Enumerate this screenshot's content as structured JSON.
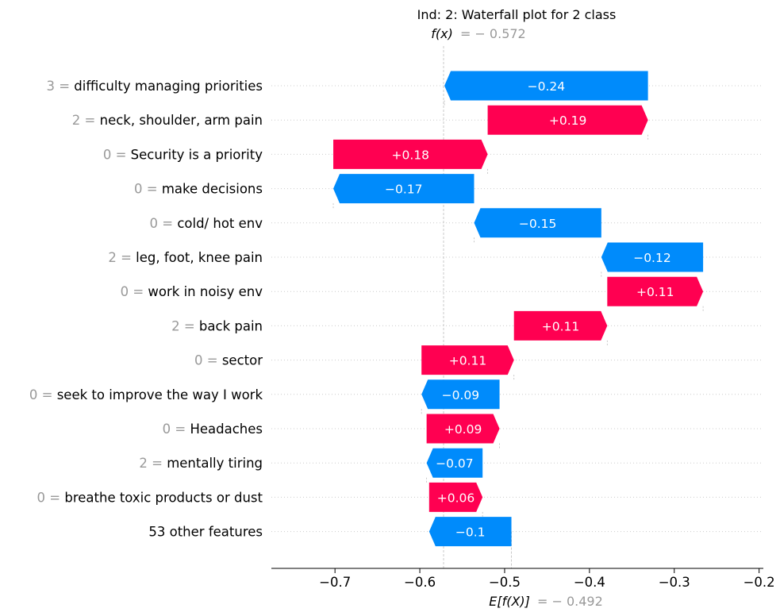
{
  "chart_data": {
    "type": "waterfall",
    "title": "Ind: 2: Waterfall plot for 2 class",
    "fx_label": "f(x)",
    "fx_value_text": "= − 0.572",
    "fx_value": -0.572,
    "base_label": "E[f(X)]",
    "base_value_text": "= − 0.492",
    "base_value": -0.492,
    "xlim": [
      -0.775,
      -0.195
    ],
    "xticks": [
      -0.7,
      -0.6,
      -0.5,
      -0.4,
      -0.3,
      -0.2
    ],
    "xtick_labels": [
      "−0.7",
      "−0.6",
      "−0.5",
      "−0.4",
      "−0.3",
      "−0.2"
    ],
    "grid": "horizontal dotted per row",
    "colors": {
      "positive": "#ff0051",
      "negative": "#008bfb",
      "feature_value": "#999999",
      "text": "#000000"
    },
    "features": [
      {
        "value": "3",
        "name": "difficulty managing priorities",
        "contribution": -0.24,
        "label": "−0.24"
      },
      {
        "value": "2",
        "name": "neck, shoulder, arm pain",
        "contribution": 0.19,
        "label": "+0.19"
      },
      {
        "value": "0",
        "name": "Security is a priority",
        "contribution": 0.18,
        "label": "+0.18"
      },
      {
        "value": "0",
        "name": "make decisions",
        "contribution": -0.17,
        "label": "−0.17"
      },
      {
        "value": "0",
        "name": "cold/ hot env",
        "contribution": -0.15,
        "label": "−0.15"
      },
      {
        "value": "2",
        "name": "leg, foot, knee pain",
        "contribution": -0.12,
        "label": "−0.12"
      },
      {
        "value": "0",
        "name": "work in noisy env",
        "contribution": 0.11,
        "label": "+0.11"
      },
      {
        "value": "2",
        "name": "back pain",
        "contribution": 0.11,
        "label": "+0.11"
      },
      {
        "value": "0",
        "name": "sector",
        "contribution": 0.11,
        "label": "+0.11"
      },
      {
        "value": "0",
        "name": "seek to improve the way I work",
        "contribution": -0.09,
        "label": "−0.09"
      },
      {
        "value": "0",
        "name": "Headaches",
        "contribution": 0.09,
        "label": "+0.09"
      },
      {
        "value": "2",
        "name": "mentally tiring",
        "contribution": -0.07,
        "label": "−0.07"
      },
      {
        "value": "0",
        "name": "breathe toxic products or dust",
        "contribution": 0.06,
        "label": "+0.06"
      },
      {
        "value": "",
        "name": "53 other features",
        "contribution": -0.1,
        "label": "−0.1"
      }
    ],
    "bar_bounds": [
      [
        -0.571,
        -0.331
      ],
      [
        -0.52,
        -0.331
      ],
      [
        -0.702,
        -0.52
      ],
      [
        -0.702,
        -0.536
      ],
      [
        -0.536,
        -0.386
      ],
      [
        -0.386,
        -0.266
      ],
      [
        -0.379,
        -0.266
      ],
      [
        -0.489,
        -0.379
      ],
      [
        -0.598,
        -0.489
      ],
      [
        -0.598,
        -0.506
      ],
      [
        -0.592,
        -0.506
      ],
      [
        -0.592,
        -0.526
      ],
      [
        -0.589,
        -0.526
      ],
      [
        -0.589,
        -0.492
      ]
    ]
  }
}
